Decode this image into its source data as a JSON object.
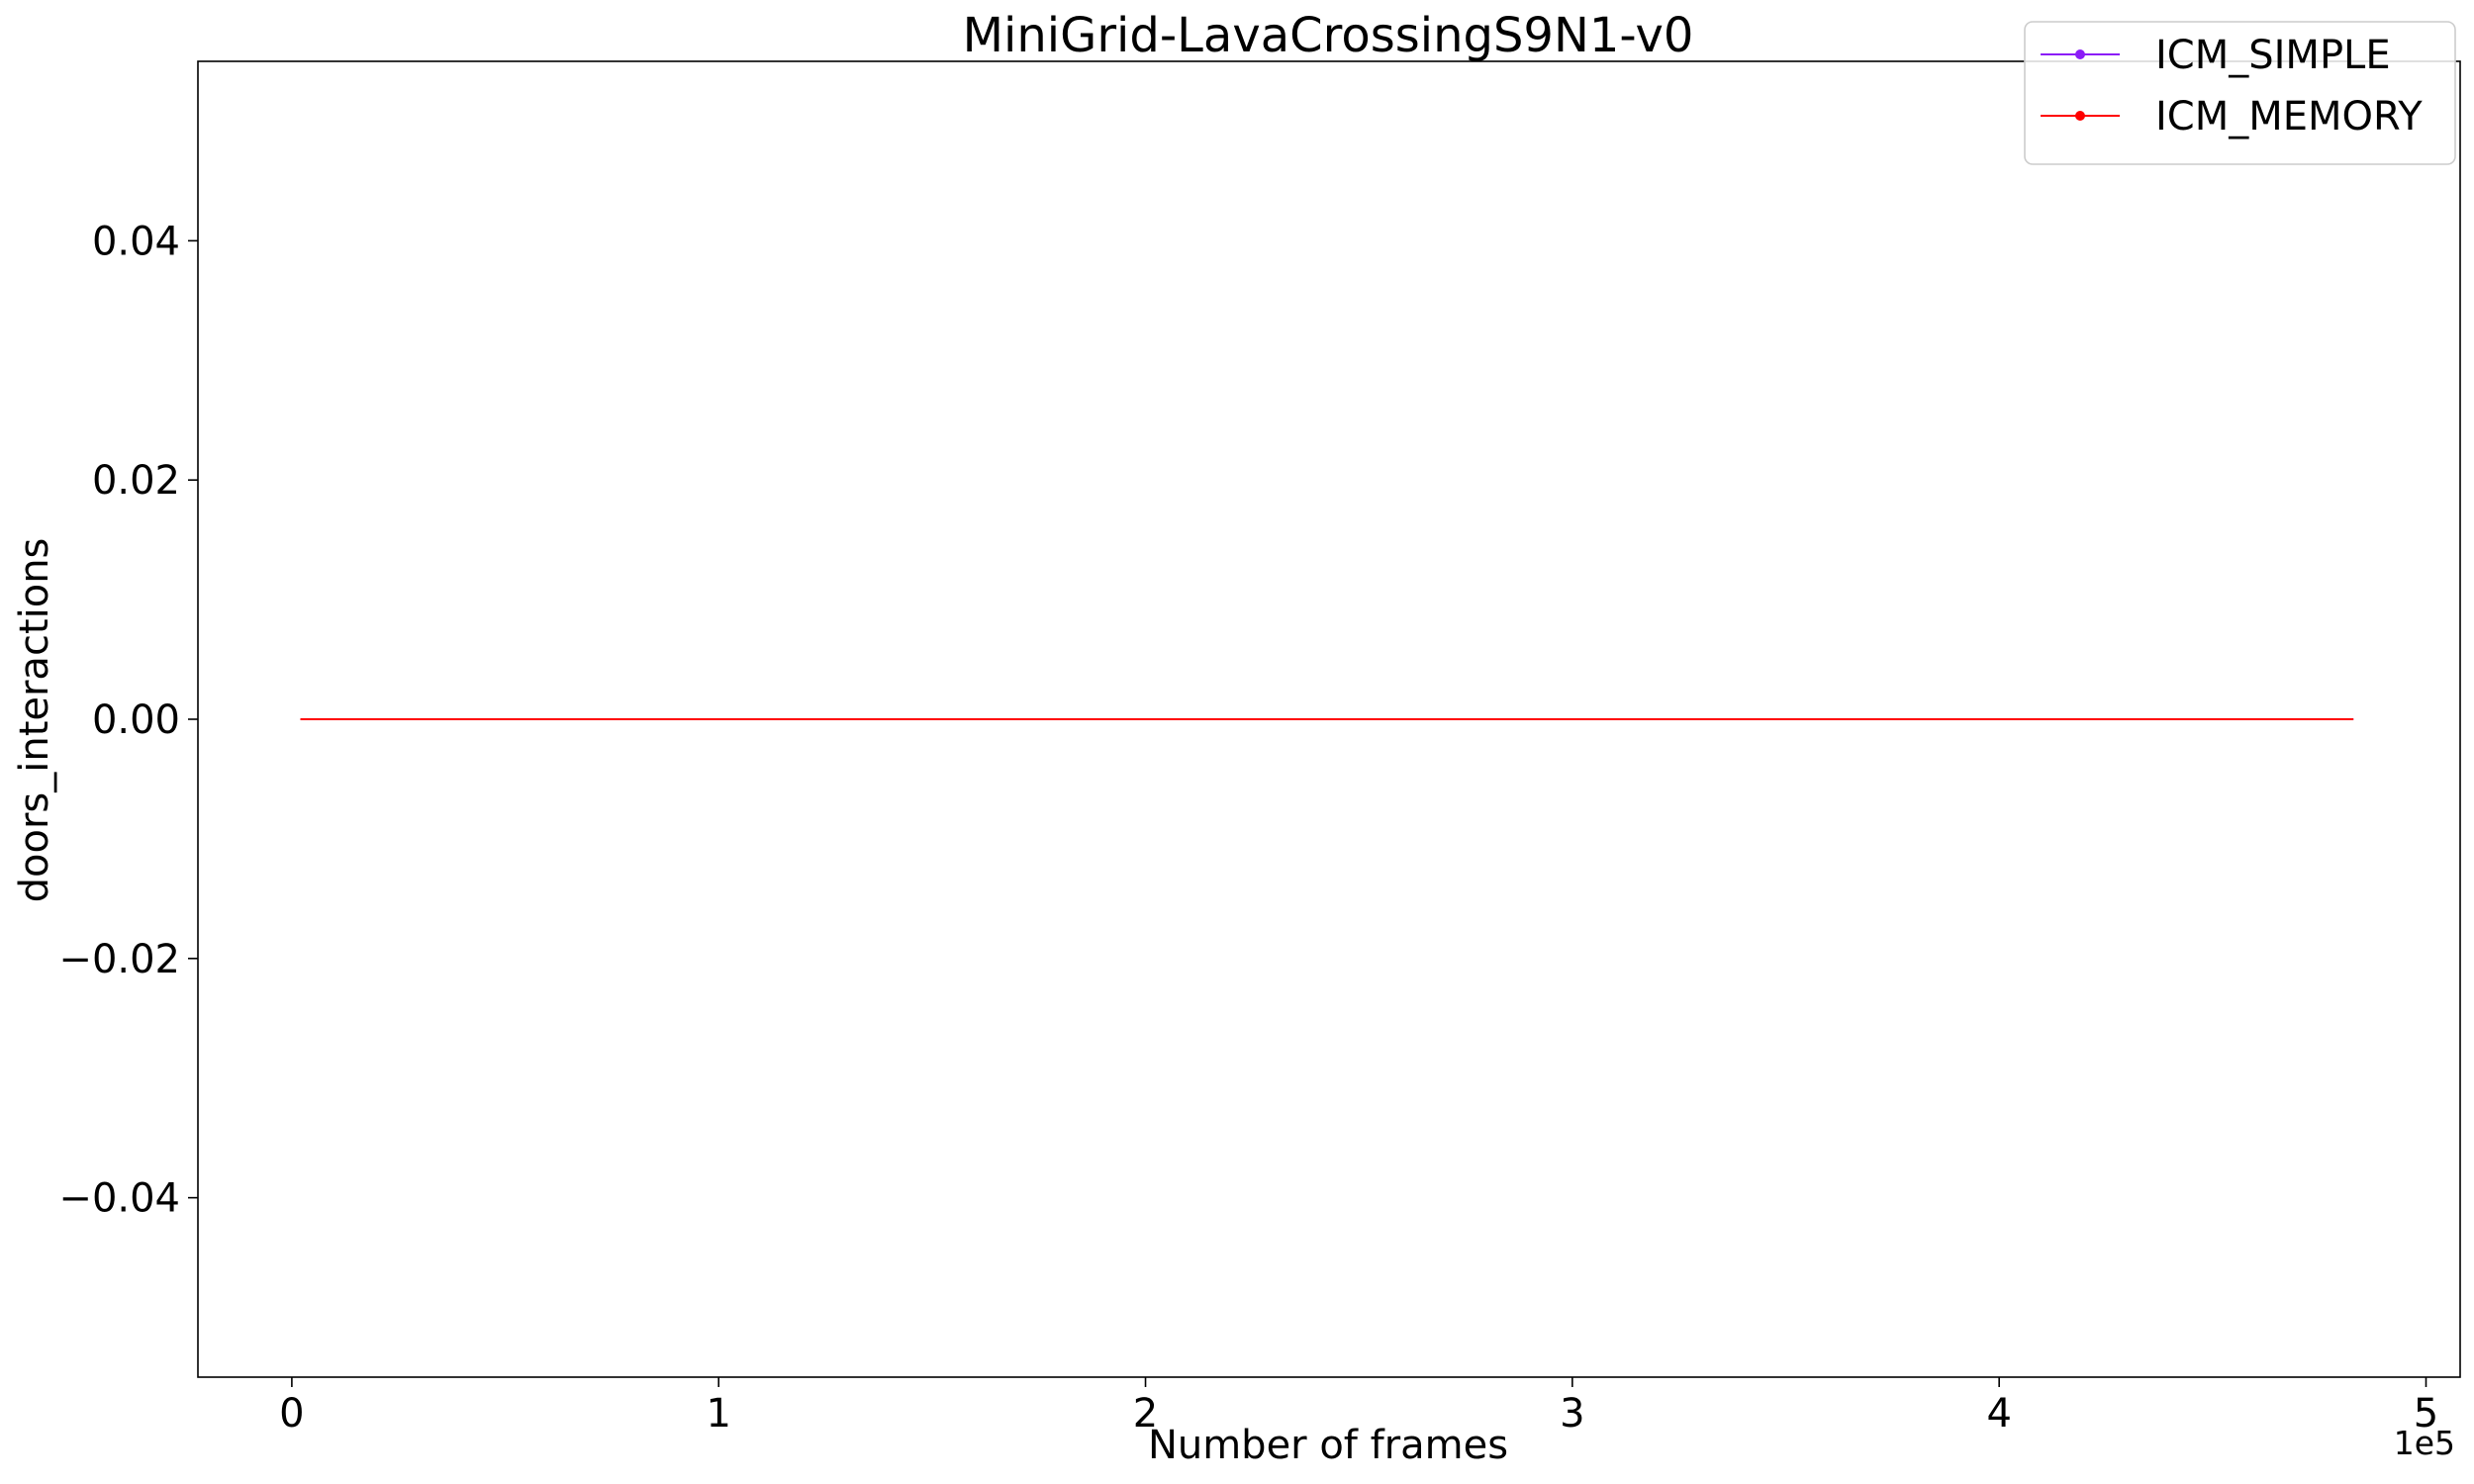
{
  "chart_data": {
    "type": "line",
    "title": "MiniGrid-LavaCrossingS9N1-v0",
    "xlabel": "Number of frames",
    "ylabel": "doors_interactions",
    "x_offset_label": "1e5",
    "xlim": [
      -0.22,
      5.08
    ],
    "ylim": [
      -0.055,
      0.055
    ],
    "x_ticks": [
      0,
      1,
      2,
      3,
      4,
      5
    ],
    "x_tick_labels": [
      "0",
      "1",
      "2",
      "3",
      "4",
      "5"
    ],
    "y_ticks": [
      -0.04,
      -0.02,
      0.0,
      0.02,
      0.04
    ],
    "y_tick_labels": [
      "−0.04",
      "−0.02",
      "0.00",
      "0.02",
      "0.04"
    ],
    "grid": false,
    "legend_position": "top-right",
    "series": [
      {
        "name": "ICM_SIMPLE",
        "color": "#8b1cf7",
        "x": [
          0.02,
          4.83
        ],
        "y": [
          0.0,
          0.0
        ]
      },
      {
        "name": "ICM_MEMORY",
        "color": "#ff0000",
        "x": [
          0.02,
          4.83
        ],
        "y": [
          0.0,
          0.0
        ]
      }
    ]
  }
}
